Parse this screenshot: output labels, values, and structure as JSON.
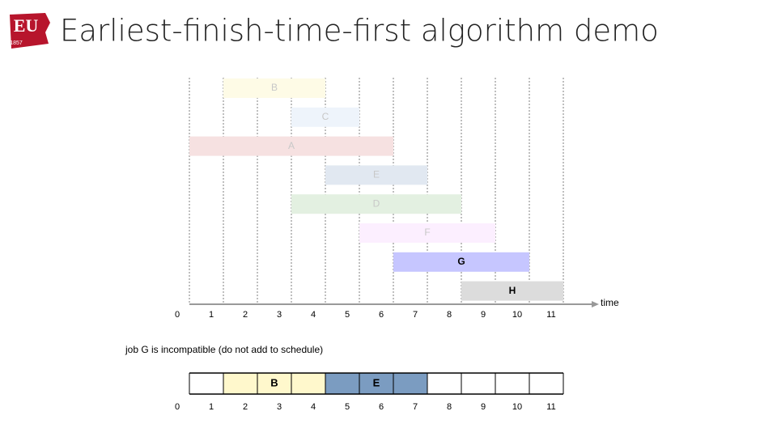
{
  "header": {
    "logo_text": "EU",
    "logo_year": "1857",
    "title": "Earliest-finish-time-first algorithm demo"
  },
  "timeline": {
    "axis_label": "time",
    "ticks": [
      "0",
      "1",
      "2",
      "3",
      "4",
      "5",
      "6",
      "7",
      "8",
      "9",
      "10",
      "11"
    ]
  },
  "jobs": [
    {
      "label": "B",
      "start": 1,
      "finish": 4,
      "color": "#fefbe6",
      "text_color": "#c8c8c8",
      "bold": false
    },
    {
      "label": "C",
      "start": 3,
      "finish": 5,
      "color": "#eef4fb",
      "text_color": "#c8c8c8",
      "bold": false
    },
    {
      "label": "A",
      "start": 0,
      "finish": 6,
      "color": "#f6e1e1",
      "text_color": "#c8c8c8",
      "bold": false
    },
    {
      "label": "E",
      "start": 4,
      "finish": 7,
      "color": "#e1e8f1",
      "text_color": "#c8c8c8",
      "bold": false
    },
    {
      "label": "D",
      "start": 3,
      "finish": 8,
      "color": "#e3f0e1",
      "text_color": "#c8c8c8",
      "bold": false
    },
    {
      "label": "F",
      "start": 5,
      "finish": 9,
      "color": "#fcefff",
      "text_color": "#c8c8c8",
      "bold": false
    },
    {
      "label": "G",
      "start": 6,
      "finish": 10,
      "color": "#c6c6ff",
      "text_color": "#000000",
      "bold": true
    },
    {
      "label": "H",
      "start": 8,
      "finish": 11,
      "color": "#dcdcdc",
      "text_color": "#000000",
      "bold": true
    }
  ],
  "caption": "job G is incompatible (do not add to schedule)",
  "schedule": {
    "jobs": [
      {
        "label": "B",
        "start": 1,
        "finish": 4,
        "color": "#fff8cc"
      },
      {
        "label": "E",
        "start": 4,
        "finish": 7,
        "color": "#7b9cc1"
      }
    ],
    "ticks": [
      "0",
      "1",
      "2",
      "3",
      "4",
      "5",
      "6",
      "7",
      "8",
      "9",
      "10",
      "11"
    ]
  }
}
